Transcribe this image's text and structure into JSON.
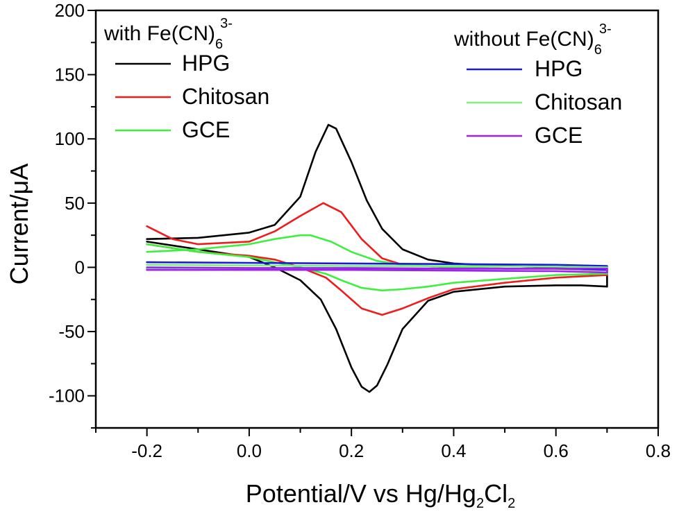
{
  "chart_data": {
    "type": "line",
    "title": "",
    "xlabel": {
      "main": "Potential/V vs Hg/Hg",
      "sub1": "2",
      "mid": "Cl",
      "sub2": "2"
    },
    "ylabel": "Current/μA",
    "xlim": [
      -0.3,
      0.8
    ],
    "ylim": [
      -125,
      200
    ],
    "xticks": [
      -0.2,
      0.0,
      0.2,
      0.4,
      0.6,
      0.8
    ],
    "xtick_labels": [
      "-0.2",
      "0.0",
      "0.2",
      "0.4",
      "0.6",
      "0.8"
    ],
    "yticks": [
      -100,
      -50,
      0,
      50,
      100,
      150,
      200
    ],
    "ytick_labels": [
      "-100",
      "-50",
      "0",
      "50",
      "100",
      "150",
      "200"
    ],
    "legend_groups": [
      {
        "heading": "with Fe(CN)",
        "sub": "6",
        "sup": "3-",
        "position": "top-left"
      },
      {
        "heading": "without Fe(CN)",
        "sub": "6",
        "sup": "3-",
        "position": "top-right"
      }
    ],
    "series": [
      {
        "name": "HPG",
        "group": 0,
        "color": "#000000",
        "x": [
          -0.2,
          -0.1,
          0.0,
          0.05,
          0.1,
          0.13,
          0.155,
          0.17,
          0.2,
          0.23,
          0.26,
          0.3,
          0.35,
          0.4,
          0.5,
          0.6,
          0.7,
          0.7,
          0.65,
          0.6,
          0.5,
          0.4,
          0.35,
          0.3,
          0.27,
          0.25,
          0.235,
          0.22,
          0.2,
          0.17,
          0.14,
          0.1,
          0.05,
          0.0,
          -0.1,
          -0.2
        ],
        "y": [
          22,
          23,
          27,
          33,
          55,
          90,
          111,
          108,
          82,
          52,
          30,
          14,
          6,
          3,
          1,
          0,
          -1,
          -15,
          -14,
          -14,
          -15,
          -19,
          -26,
          -48,
          -76,
          -92,
          -97,
          -93,
          -78,
          -48,
          -25,
          -10,
          0,
          8,
          14,
          20
        ]
      },
      {
        "name": "Chitosan",
        "group": 0,
        "color": "#ee1c1c",
        "x": [
          -0.2,
          -0.15,
          -0.1,
          0.0,
          0.05,
          0.1,
          0.145,
          0.18,
          0.22,
          0.26,
          0.3,
          0.4,
          0.5,
          0.6,
          0.7,
          0.7,
          0.6,
          0.5,
          0.4,
          0.35,
          0.3,
          0.26,
          0.22,
          0.18,
          0.15,
          0.1,
          0.05,
          0.0,
          -0.1,
          -0.15,
          -0.2
        ],
        "y": [
          32,
          22,
          18,
          20,
          28,
          40,
          50,
          43,
          22,
          7,
          2,
          0,
          -1,
          -1,
          -2,
          -6,
          -8,
          -12,
          -17,
          -24,
          -32,
          -37,
          -32,
          -18,
          -8,
          0,
          6,
          9,
          12,
          15,
          18
        ]
      },
      {
        "name": "GCE",
        "group": 0,
        "color": "#3ef03e",
        "x": [
          -0.2,
          -0.1,
          0.0,
          0.05,
          0.1,
          0.12,
          0.16,
          0.2,
          0.25,
          0.3,
          0.4,
          0.5,
          0.6,
          0.7,
          0.7,
          0.6,
          0.5,
          0.4,
          0.35,
          0.3,
          0.26,
          0.22,
          0.18,
          0.15,
          0.1,
          0.05,
          0.0,
          -0.1,
          -0.2
        ],
        "y": [
          12,
          14,
          18,
          22,
          25,
          25,
          20,
          12,
          5,
          2,
          0,
          -1,
          -1,
          -2,
          -5,
          -6,
          -9,
          -12,
          -15,
          -17,
          -18,
          -16,
          -10,
          -5,
          0,
          4,
          8,
          12,
          18
        ]
      },
      {
        "name": "HPG",
        "group": 1,
        "color": "#1a1adf",
        "x": [
          -0.2,
          0.0,
          0.2,
          0.4,
          0.6,
          0.7,
          0.7,
          0.6,
          0.4,
          0.2,
          0.0,
          -0.2
        ],
        "y": [
          4,
          3.5,
          3,
          2.5,
          2,
          1,
          -2,
          -1,
          -1,
          -1,
          -1.5,
          -1
        ]
      },
      {
        "name": "Chitosan",
        "group": 1,
        "color": "#7cf07c",
        "x": [
          -0.2,
          0.0,
          0.2,
          0.4,
          0.6,
          0.7,
          0.7,
          0.6,
          0.4,
          0.2,
          0.0,
          -0.2
        ],
        "y": [
          2,
          1.5,
          1,
          1,
          0.5,
          0,
          -4,
          -3,
          -2.5,
          -2,
          -1.5,
          -1
        ]
      },
      {
        "name": "GCE",
        "group": 1,
        "color": "#a020f0",
        "x": [
          -0.2,
          0.0,
          0.2,
          0.4,
          0.6,
          0.7,
          0.7,
          0.6,
          0.4,
          0.2,
          0.0,
          -0.2
        ],
        "y": [
          0,
          -0.5,
          -0.5,
          -1,
          -1,
          -1,
          -4,
          -3,
          -2.5,
          -2,
          -2,
          -2
        ]
      }
    ]
  }
}
